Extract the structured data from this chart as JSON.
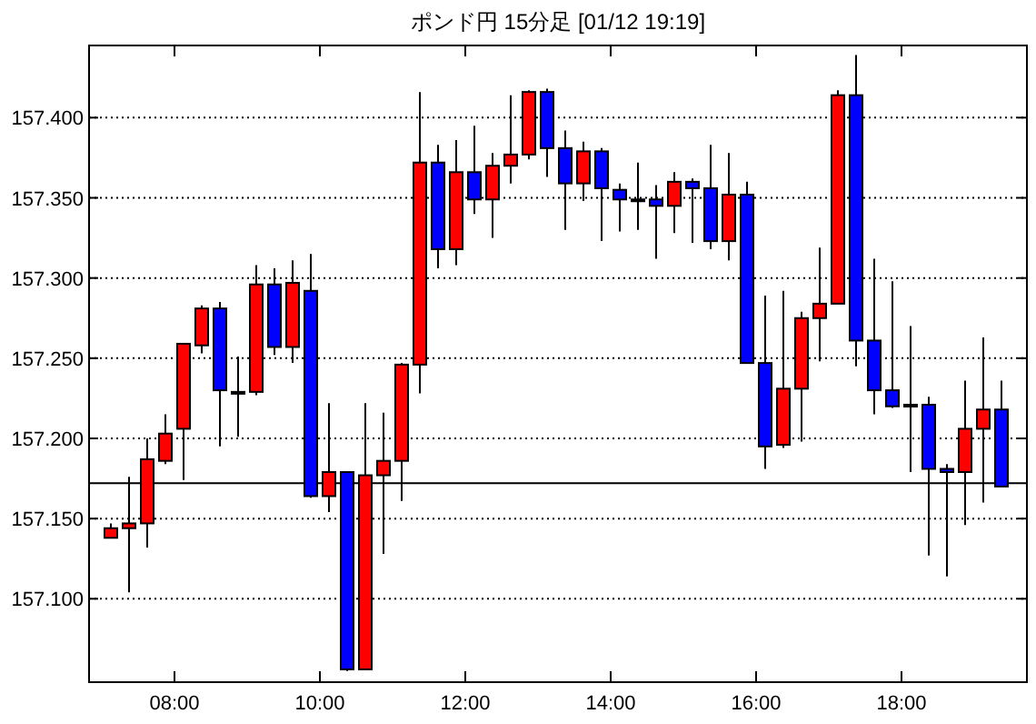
{
  "chart_data": {
    "type": "candlestick",
    "title": "ポンド円 15分足 [01/12 19:19]",
    "x": [
      7.125,
      7.375,
      7.625,
      7.875,
      8.125,
      8.375,
      8.625,
      8.875,
      9.125,
      9.375,
      9.625,
      9.875,
      10.125,
      10.375,
      10.625,
      10.875,
      11.125,
      11.375,
      11.625,
      11.875,
      12.125,
      12.375,
      12.625,
      12.875,
      13.125,
      13.375,
      13.625,
      13.875,
      14.125,
      14.375,
      14.625,
      14.875,
      15.125,
      15.375,
      15.625,
      15.875,
      16.125,
      16.375,
      16.625,
      16.875,
      17.125,
      17.375,
      17.625,
      17.875,
      18.125,
      18.375,
      18.625,
      18.875,
      19.125,
      19.375
    ],
    "ohlc": [
      [
        157.138,
        157.147,
        157.138,
        157.144
      ],
      [
        157.144,
        157.176,
        157.104,
        157.147
      ],
      [
        157.147,
        157.2,
        157.132,
        157.187
      ],
      [
        157.186,
        157.215,
        157.184,
        157.203
      ],
      [
        157.206,
        157.259,
        157.174,
        157.259
      ],
      [
        157.258,
        157.283,
        157.253,
        157.281
      ],
      [
        157.281,
        157.285,
        157.195,
        157.23
      ],
      [
        157.229,
        157.251,
        157.201,
        157.229
      ],
      [
        157.229,
        157.308,
        157.227,
        157.296
      ],
      [
        157.296,
        157.306,
        157.252,
        157.257
      ],
      [
        157.257,
        157.311,
        157.247,
        157.297
      ],
      [
        157.292,
        157.315,
        157.163,
        157.164
      ],
      [
        157.164,
        157.222,
        157.154,
        157.179
      ],
      [
        157.179,
        157.179,
        157.055,
        157.056
      ],
      [
        157.056,
        157.222,
        157.056,
        157.177
      ],
      [
        157.177,
        157.216,
        157.128,
        157.186
      ],
      [
        157.186,
        157.247,
        157.161,
        157.246
      ],
      [
        157.246,
        157.416,
        157.228,
        157.372
      ],
      [
        157.372,
        157.383,
        157.306,
        157.318
      ],
      [
        157.318,
        157.386,
        157.308,
        157.366
      ],
      [
        157.366,
        157.395,
        157.34,
        157.349
      ],
      [
        157.349,
        157.378,
        157.325,
        157.37
      ],
      [
        157.37,
        157.414,
        157.359,
        157.377
      ],
      [
        157.377,
        157.417,
        157.374,
        157.416
      ],
      [
        157.416,
        157.418,
        157.363,
        157.381
      ],
      [
        157.381,
        157.392,
        157.33,
        157.359
      ],
      [
        157.359,
        157.385,
        157.348,
        157.379
      ],
      [
        157.379,
        157.381,
        157.323,
        157.356
      ],
      [
        157.355,
        157.359,
        157.329,
        157.349
      ],
      [
        157.349,
        157.372,
        157.33,
        157.349
      ],
      [
        157.349,
        157.358,
        157.312,
        157.345
      ],
      [
        157.345,
        157.366,
        157.328,
        157.36
      ],
      [
        157.36,
        157.362,
        157.322,
        157.356
      ],
      [
        157.356,
        157.383,
        157.318,
        157.323
      ],
      [
        157.323,
        157.378,
        157.311,
        157.352
      ],
      [
        157.352,
        157.36,
        157.247,
        157.247
      ],
      [
        157.247,
        157.289,
        157.181,
        157.195
      ],
      [
        157.196,
        157.292,
        157.194,
        157.231
      ],
      [
        157.231,
        157.279,
        157.198,
        157.275
      ],
      [
        157.275,
        157.319,
        157.248,
        157.284
      ],
      [
        157.284,
        157.417,
        157.284,
        157.414
      ],
      [
        157.414,
        157.439,
        157.245,
        157.261
      ],
      [
        157.261,
        157.312,
        157.215,
        157.23
      ],
      [
        157.23,
        157.298,
        157.219,
        157.22
      ],
      [
        157.221,
        157.27,
        157.179,
        157.221
      ],
      [
        157.221,
        157.226,
        157.127,
        157.181
      ],
      [
        157.181,
        157.184,
        157.114,
        157.179
      ],
      [
        157.179,
        157.236,
        157.146,
        157.206
      ],
      [
        157.206,
        157.263,
        157.16,
        157.218
      ],
      [
        157.218,
        157.236,
        157.17,
        157.17
      ]
    ],
    "colors": [
      "#ff0000",
      "#ff0000",
      "#ff0000",
      "#ff0000",
      "#ff0000",
      "#ff0000",
      "#0000ff",
      "#000000",
      "#ff0000",
      "#0000ff",
      "#ff0000",
      "#0000ff",
      "#ff0000",
      "#0000ff",
      "#ff0000",
      "#ff0000",
      "#ff0000",
      "#ff0000",
      "#0000ff",
      "#ff0000",
      "#0000ff",
      "#ff0000",
      "#ff0000",
      "#ff0000",
      "#0000ff",
      "#0000ff",
      "#ff0000",
      "#0000ff",
      "#0000ff",
      "#000000",
      "#0000ff",
      "#ff0000",
      "#0000ff",
      "#0000ff",
      "#ff0000",
      "#0000ff",
      "#0000ff",
      "#ff0000",
      "#ff0000",
      "#ff0000",
      "#ff0000",
      "#0000ff",
      "#0000ff",
      "#0000ff",
      "#000000",
      "#0000ff",
      "#0000ff",
      "#ff0000",
      "#ff0000",
      "#0000ff"
    ],
    "xlim": [
      6.825,
      19.725
    ],
    "ylim": [
      157.048,
      157.445
    ],
    "xticks": [
      {
        "value": 8,
        "label": "08:00"
      },
      {
        "value": 10,
        "label": "10:00"
      },
      {
        "value": 12,
        "label": "12:00"
      },
      {
        "value": 14,
        "label": "14:00"
      },
      {
        "value": 16,
        "label": "16:00"
      },
      {
        "value": 18,
        "label": "18:00"
      }
    ],
    "yticks": [
      {
        "value": 157.1,
        "label": "157.100"
      },
      {
        "value": 157.15,
        "label": "157.150"
      },
      {
        "value": 157.2,
        "label": "157.200"
      },
      {
        "value": 157.25,
        "label": "157.250"
      },
      {
        "value": 157.3,
        "label": "157.300"
      },
      {
        "value": 157.35,
        "label": "157.350"
      },
      {
        "value": 157.4,
        "label": "157.400"
      }
    ],
    "grid": "y",
    "ref_lines": [
      {
        "axis": "y",
        "value": 157.172,
        "color": "#000000"
      }
    ]
  }
}
